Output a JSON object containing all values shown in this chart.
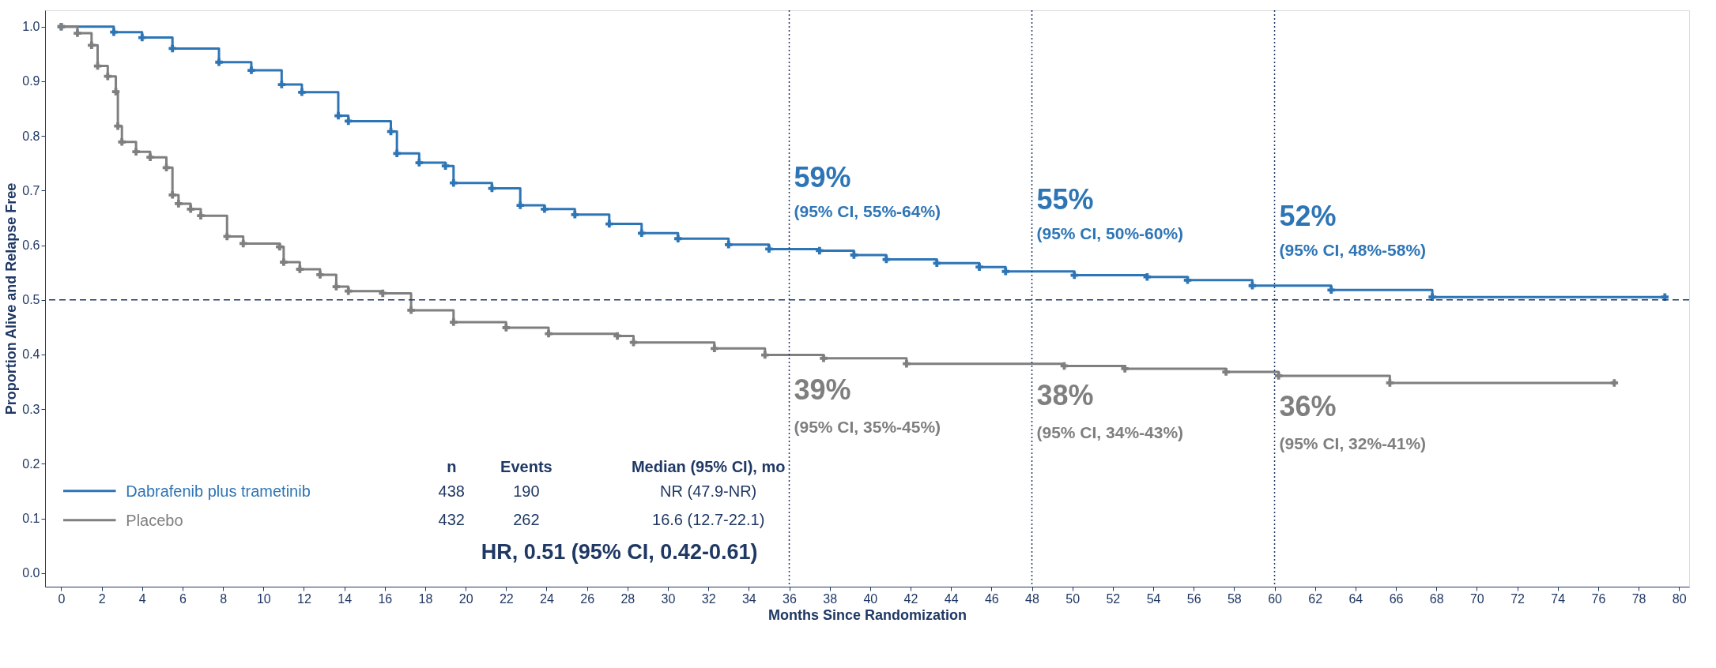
{
  "chart_data": {
    "type": "step",
    "xlabel": "Months Since Randomization",
    "ylabel": "Proportion Alive and Relapse Free",
    "xlim": [
      -0.8,
      80.5
    ],
    "xticks": [
      0,
      2,
      4,
      6,
      8,
      10,
      12,
      14,
      16,
      18,
      20,
      22,
      24,
      26,
      28,
      30,
      32,
      34,
      36,
      38,
      40,
      42,
      44,
      46,
      48,
      50,
      52,
      54,
      56,
      58,
      60,
      62,
      64,
      66,
      68,
      70,
      72,
      74,
      76,
      78,
      80
    ],
    "ylim": [
      -0.025,
      1.03
    ],
    "yticks": [
      {
        "value": 0,
        "label": "0.0"
      },
      0.1,
      0.2,
      0.3,
      0.4,
      0.5,
      0.6,
      0.7,
      0.8,
      0.9,
      {
        "value": 1,
        "label": "1.0"
      }
    ],
    "grid": false,
    "legend": "bottom left",
    "marker": "cross",
    "line_style": "solid",
    "series": [
      {
        "name": "Dabrafenib plus trametinib",
        "color": "#2e75b6",
        "x": [
          0,
          2.6,
          4.0,
          5.5,
          7.8,
          9.4,
          10.9,
          11.9,
          13.7,
          14.2,
          16.3,
          16.6,
          17.7,
          19.0,
          19.4,
          21.3,
          22.7,
          23.9,
          25.4,
          27.1,
          28.7,
          30.5,
          33.0,
          35.0,
          37.5,
          39.2,
          40.8,
          43.3,
          45.4,
          46.7,
          50.1,
          53.7,
          55.7,
          58.9,
          62.8,
          67.8,
          79.3
        ],
        "values": [
          1.0,
          0.99,
          0.98,
          0.96,
          0.935,
          0.92,
          0.894,
          0.88,
          0.837,
          0.827,
          0.808,
          0.768,
          0.751,
          0.745,
          0.714,
          0.704,
          0.673,
          0.666,
          0.656,
          0.639,
          0.622,
          0.612,
          0.601,
          0.593,
          0.59,
          0.582,
          0.574,
          0.567,
          0.56,
          0.552,
          0.545,
          0.542,
          0.536,
          0.526,
          0.518,
          0.505,
          0.505
        ]
      },
      {
        "name": "Placebo",
        "color": "#7f7f7f",
        "x": [
          0,
          0.8,
          1.5,
          1.8,
          2.3,
          2.7,
          2.8,
          3.0,
          3.7,
          4.4,
          5.2,
          5.5,
          5.8,
          6.4,
          6.9,
          8.2,
          9.0,
          10.8,
          11.0,
          11.8,
          12.8,
          13.6,
          14.2,
          15.9,
          17.3,
          19.4,
          22.0,
          24.1,
          27.5,
          28.3,
          32.3,
          34.8,
          37.7,
          41.8,
          49.6,
          52.6,
          57.6,
          60.2,
          65.7,
          76.8
        ],
        "values": [
          1.0,
          0.988,
          0.966,
          0.928,
          0.909,
          0.881,
          0.818,
          0.789,
          0.771,
          0.761,
          0.742,
          0.692,
          0.676,
          0.666,
          0.654,
          0.616,
          0.603,
          0.597,
          0.569,
          0.556,
          0.546,
          0.524,
          0.516,
          0.512,
          0.481,
          0.459,
          0.449,
          0.438,
          0.434,
          0.422,
          0.411,
          0.399,
          0.393,
          0.383,
          0.379,
          0.374,
          0.368,
          0.361,
          0.348,
          0.348
        ]
      }
    ],
    "ref_lines": [
      {
        "axis": "y",
        "value": 0.5,
        "color": "#1f3864",
        "line_style": "dashed"
      },
      {
        "axis": "x",
        "value": 36,
        "color": "#1f3864",
        "line_style": "dotted"
      },
      {
        "axis": "x",
        "value": 48,
        "color": "#1f3864",
        "line_style": "dotted"
      },
      {
        "axis": "x",
        "value": 60,
        "color": "#1f3864",
        "line_style": "dotted"
      }
    ],
    "annotations": [
      {
        "text": "59%",
        "x": 36,
        "y": 0.59
      },
      {
        "text": "55%",
        "x": 48,
        "y": 0.55
      },
      {
        "text": "52%",
        "x": 60,
        "y": 0.52
      },
      {
        "text": "39%",
        "x": 36,
        "y": 0.39
      },
      {
        "text": "38%",
        "x": 48,
        "y": 0.38
      },
      {
        "text": "36%",
        "x": 60,
        "y": 0.36
      },
      "(95% CI, 55%-64%)",
      "(95% CI, 50%-60%)",
      "(95% CI, 48%-58%)",
      "(95% CI, 35%-45%)",
      "(95% CI, 34%-43%)",
      "(95% CI, 32%-41%)",
      "n",
      "Events",
      "Median (95% CI), mo",
      "438",
      "190",
      "NR (47.9-NR)",
      "432",
      "262",
      "16.6 (12.7-22.1)",
      "HR, 0.51 (95% CI, 0.42-0.61)"
    ]
  }
}
